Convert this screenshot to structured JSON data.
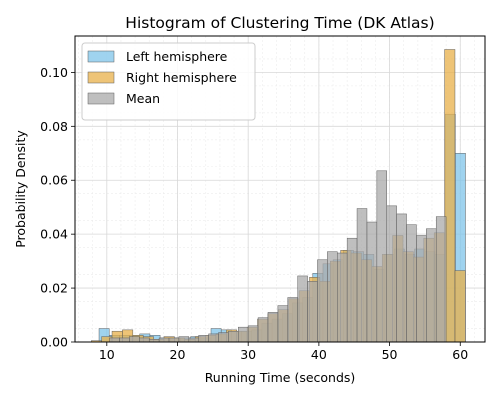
{
  "chart_data": {
    "type": "bar",
    "title": "Histogram of Clustering Time (DK Atlas)",
    "xlabel": "Running Time (seconds)",
    "ylabel": "Probability Density",
    "xlim": [
      5.5,
      63.5
    ],
    "ylim": [
      0,
      0.1135
    ],
    "xticks": [
      10,
      20,
      30,
      40,
      50,
      60
    ],
    "xtick_labels": [
      "10",
      "20",
      "30",
      "40",
      "50",
      "60"
    ],
    "yticks": [
      0.0,
      0.02,
      0.04,
      0.06,
      0.08,
      0.1
    ],
    "ytick_labels": [
      "0.00",
      "0.02",
      "0.04",
      "0.06",
      "0.08",
      "0.10"
    ],
    "grid": true,
    "legend_position": "top-left",
    "series": [
      {
        "name": "Left hemisphere",
        "color": "#7fc4ea",
        "bin_start": 8.9,
        "bin_width": 1.44,
        "values": [
          0.005,
          0.0025,
          0.0025,
          0.0025,
          0.003,
          0.0025,
          0.0015,
          0.0015,
          0.0015,
          0.002,
          0.0015,
          0.005,
          0.0045,
          0.004,
          0.004,
          0.0045,
          0.007,
          0.0085,
          0.0105,
          0.0145,
          0.0165,
          0.0255,
          0.029,
          0.0305,
          0.034,
          0.0335,
          0.0325,
          0.027,
          0.0325,
          0.0345,
          0.0325,
          0.0345,
          0.0335,
          0.0325,
          0.0845,
          0.07
        ]
      },
      {
        "name": "Right hemisphere",
        "color": "#e8b04a",
        "bin_start": 7.8,
        "bin_width": 1.47,
        "values": [
          0.0005,
          0.002,
          0.004,
          0.0045,
          0.0025,
          0.002,
          0.001,
          0.002,
          0.0015,
          0.001,
          0.002,
          0.0025,
          0.003,
          0.0045,
          0.004,
          0.0055,
          0.0085,
          0.0105,
          0.012,
          0.016,
          0.019,
          0.024,
          0.0225,
          0.03,
          0.034,
          0.033,
          0.0305,
          0.028,
          0.0325,
          0.0395,
          0.0335,
          0.0315,
          0.0385,
          0.0405,
          0.1085,
          0.0265
        ]
      },
      {
        "name": "Mean",
        "color": "#a9a9a9",
        "bin_start": 10.4,
        "bin_width": 1.4,
        "values": [
          0.0015,
          0.0015,
          0.002,
          0.0015,
          0.001,
          0.0015,
          0.0015,
          0.002,
          0.0015,
          0.0025,
          0.003,
          0.0035,
          0.004,
          0.0055,
          0.006,
          0.009,
          0.011,
          0.0135,
          0.0165,
          0.0245,
          0.0225,
          0.0305,
          0.0335,
          0.033,
          0.0385,
          0.0495,
          0.0445,
          0.0635,
          0.0505,
          0.0475,
          0.0435,
          0.0395,
          0.042,
          0.0465
        ]
      }
    ]
  }
}
